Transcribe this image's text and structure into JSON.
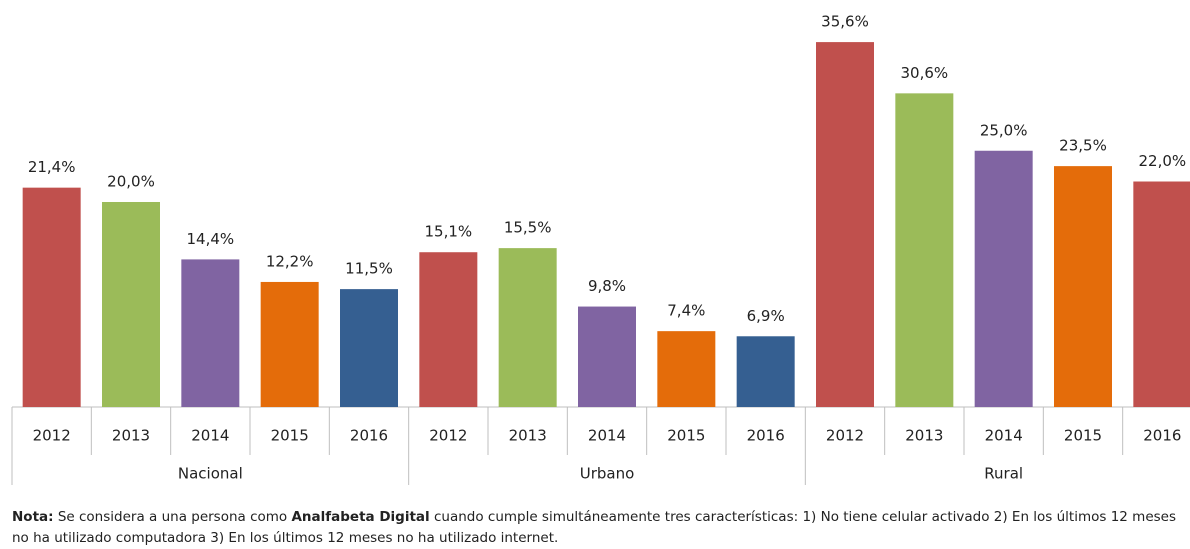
{
  "chart_data": {
    "type": "bar",
    "ylim": [
      0,
      36
    ],
    "groups": [
      {
        "name": "Nacional",
        "categories": [
          "2012",
          "2013",
          "2014",
          "2015",
          "2016"
        ],
        "values": [
          21.4,
          20.0,
          14.4,
          12.2,
          11.5
        ],
        "value_labels": [
          "21,4%",
          "20,0%",
          "14,4%",
          "12,2%",
          "11,5%"
        ],
        "colors": [
          "#c0504d",
          "#9bbb59",
          "#8064a2",
          "#e46c0a",
          "#355f91"
        ]
      },
      {
        "name": "Urbano",
        "categories": [
          "2012",
          "2013",
          "2014",
          "2015",
          "2016"
        ],
        "values": [
          15.1,
          15.5,
          9.8,
          7.4,
          6.9
        ],
        "value_labels": [
          "15,1%",
          "15,5%",
          "9,8%",
          "7,4%",
          "6,9%"
        ],
        "colors": [
          "#c0504d",
          "#9bbb59",
          "#8064a2",
          "#e46c0a",
          "#355f91"
        ]
      },
      {
        "name": "Rural",
        "categories": [
          "2012",
          "2013",
          "2014",
          "2015",
          "2016"
        ],
        "values": [
          35.6,
          30.6,
          25.0,
          23.5,
          22.0
        ],
        "value_labels": [
          "35,6%",
          "30,6%",
          "25,0%",
          "23,5%",
          "22,0%"
        ],
        "colors": [
          "#c0504d",
          "#9bbb59",
          "#8064a2",
          "#e46c0a",
          "#c0504d"
        ]
      }
    ]
  },
  "note": {
    "label": "Nota:",
    "text_1": " Se considera a una persona como ",
    "bold": "Analfabeta Digital",
    "text_2": " cuando cumple simultáneamente tres características: 1) No tiene celular activado 2) En los últimos 12 meses no ha utilizado computadora 3) En los últimos 12 meses no ha utilizado internet."
  }
}
